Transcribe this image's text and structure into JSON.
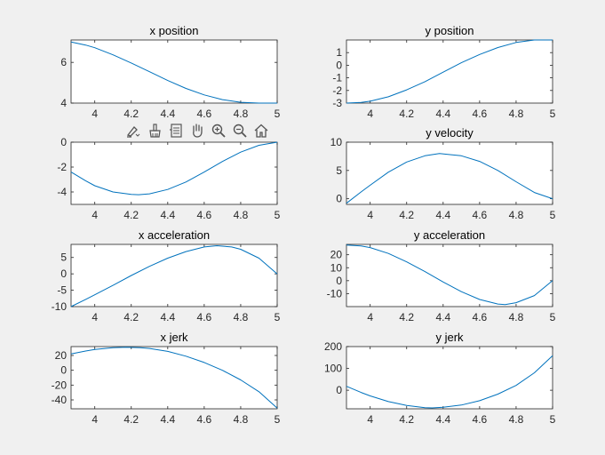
{
  "toolbar": {
    "tools": [
      {
        "icon": "data-tips-icon"
      },
      {
        "icon": "brush-icon"
      },
      {
        "icon": "link-legend-icon"
      },
      {
        "icon": "pan-hand-icon"
      },
      {
        "icon": "zoom-in-icon"
      },
      {
        "icon": "zoom-out-icon"
      },
      {
        "icon": "home-restore-icon"
      }
    ]
  },
  "colors": {
    "background": "#f0f0f0",
    "axes_background": "#ffffff",
    "axis_line": "#262626",
    "series": "#0072bd"
  },
  "chart_data": [
    {
      "type": "line",
      "title": "x position",
      "xlim": [
        3.87,
        5.0
      ],
      "ylim": [
        4,
        7.1
      ],
      "xticks": [
        "4",
        "4.2",
        "4.4",
        "4.6",
        "4.8",
        "5"
      ],
      "yticks": [
        "4",
        "6"
      ],
      "x": [
        3.87,
        3.95,
        4.0,
        4.1,
        4.2,
        4.3,
        4.4,
        4.5,
        4.6,
        4.7,
        4.8,
        4.9,
        5.0
      ],
      "y": [
        7.0,
        6.85,
        6.72,
        6.37,
        5.97,
        5.54,
        5.11,
        4.72,
        4.4,
        4.17,
        4.04,
        4.0,
        4.0
      ]
    },
    {
      "type": "line",
      "title": "y position",
      "xlim": [
        3.87,
        5.0
      ],
      "ylim": [
        -3,
        2
      ],
      "xticks": [
        "4",
        "4.2",
        "4.4",
        "4.6",
        "4.8",
        "5"
      ],
      "yticks": [
        "-3",
        "-2",
        "-1",
        "0",
        "1"
      ],
      "x": [
        3.87,
        3.95,
        4.0,
        4.1,
        4.2,
        4.3,
        4.4,
        4.5,
        4.6,
        4.7,
        4.8,
        4.9,
        5.0
      ],
      "y": [
        -3.0,
        -2.95,
        -2.85,
        -2.5,
        -1.95,
        -1.3,
        -0.55,
        0.2,
        0.85,
        1.4,
        1.8,
        2.0,
        2.0
      ]
    },
    {
      "type": "line",
      "title": "",
      "xlim": [
        3.87,
        5.0
      ],
      "ylim": [
        -5,
        0
      ],
      "xticks": [
        "4",
        "4.2",
        "4.4",
        "4.6",
        "4.8",
        "5"
      ],
      "yticks": [
        "-4",
        "-2",
        "0"
      ],
      "x": [
        3.87,
        3.95,
        4.0,
        4.1,
        4.2,
        4.24,
        4.3,
        4.4,
        4.5,
        4.6,
        4.7,
        4.8,
        4.9,
        5.0
      ],
      "y": [
        -2.4,
        -3.1,
        -3.5,
        -4.0,
        -4.2,
        -4.22,
        -4.15,
        -3.8,
        -3.2,
        -2.4,
        -1.55,
        -0.8,
        -0.25,
        0.0
      ]
    },
    {
      "type": "line",
      "title": "y velocity",
      "xlim": [
        3.87,
        5.0
      ],
      "ylim": [
        -1,
        10
      ],
      "xticks": [
        "4",
        "4.2",
        "4.4",
        "4.6",
        "4.8",
        "5"
      ],
      "yticks": [
        "0",
        "5",
        "10"
      ],
      "x": [
        3.87,
        3.95,
        4.0,
        4.1,
        4.2,
        4.3,
        4.38,
        4.5,
        4.6,
        4.7,
        4.8,
        4.9,
        5.0
      ],
      "y": [
        -0.8,
        1.2,
        2.4,
        4.7,
        6.5,
        7.6,
        8.0,
        7.6,
        6.6,
        5.0,
        3.0,
        1.1,
        0.0
      ]
    },
    {
      "type": "line",
      "title": "x acceleration",
      "xlim": [
        3.87,
        5.0
      ],
      "ylim": [
        -10,
        9
      ],
      "xticks": [
        "4",
        "4.2",
        "4.4",
        "4.6",
        "4.8",
        "5"
      ],
      "yticks": [
        "-10",
        "-5",
        "0",
        "5"
      ],
      "x": [
        3.87,
        3.95,
        4.0,
        4.1,
        4.2,
        4.3,
        4.4,
        4.5,
        4.6,
        4.67,
        4.75,
        4.8,
        4.9,
        5.0
      ],
      "y": [
        -10.0,
        -7.8,
        -6.4,
        -3.5,
        -0.5,
        2.3,
        4.8,
        6.8,
        8.2,
        8.6,
        8.2,
        7.5,
        4.8,
        0.0
      ]
    },
    {
      "type": "line",
      "title": "y acceleration",
      "xlim": [
        3.87,
        5.0
      ],
      "ylim": [
        -20,
        28
      ],
      "xticks": [
        "4",
        "4.2",
        "4.4",
        "4.6",
        "4.8",
        "5"
      ],
      "yticks": [
        "-10",
        "0",
        "10",
        "20"
      ],
      "x": [
        3.87,
        3.95,
        4.0,
        4.1,
        4.2,
        4.3,
        4.4,
        4.5,
        4.6,
        4.7,
        4.74,
        4.8,
        4.9,
        5.0
      ],
      "y": [
        27.5,
        26.8,
        25.5,
        21.0,
        14.5,
        7.0,
        -1.0,
        -8.5,
        -14.5,
        -18.0,
        -18.5,
        -17.0,
        -11.5,
        0.0
      ]
    },
    {
      "type": "line",
      "title": "x jerk",
      "xlim": [
        3.87,
        5.0
      ],
      "ylim": [
        -52,
        32
      ],
      "xticks": [
        "4",
        "4.2",
        "4.4",
        "4.6",
        "4.8",
        "5"
      ],
      "yticks": [
        "-40",
        "-20",
        "0",
        "20"
      ],
      "x": [
        3.87,
        3.95,
        4.0,
        4.1,
        4.17,
        4.25,
        4.3,
        4.4,
        4.5,
        4.6,
        4.7,
        4.8,
        4.9,
        5.0
      ],
      "y": [
        22.0,
        26.0,
        28.0,
        30.5,
        31.0,
        30.5,
        29.5,
        25.5,
        19.0,
        10.5,
        0.0,
        -13.0,
        -29.0,
        -51.0
      ]
    },
    {
      "type": "line",
      "title": "y jerk",
      "xlim": [
        3.87,
        5.0
      ],
      "ylim": [
        -85,
        200
      ],
      "xticks": [
        "4",
        "4.2",
        "4.4",
        "4.6",
        "4.8",
        "5"
      ],
      "yticks": [
        "0",
        "100",
        "200"
      ],
      "x": [
        3.87,
        3.95,
        4.0,
        4.1,
        4.2,
        4.3,
        4.34,
        4.4,
        4.5,
        4.6,
        4.7,
        4.8,
        4.9,
        5.0
      ],
      "y": [
        18.0,
        -10.0,
        -26.0,
        -52.0,
        -70.0,
        -80.0,
        -81.0,
        -78.0,
        -68.0,
        -48.0,
        -18.0,
        22.0,
        80.0,
        158.0
      ]
    }
  ]
}
